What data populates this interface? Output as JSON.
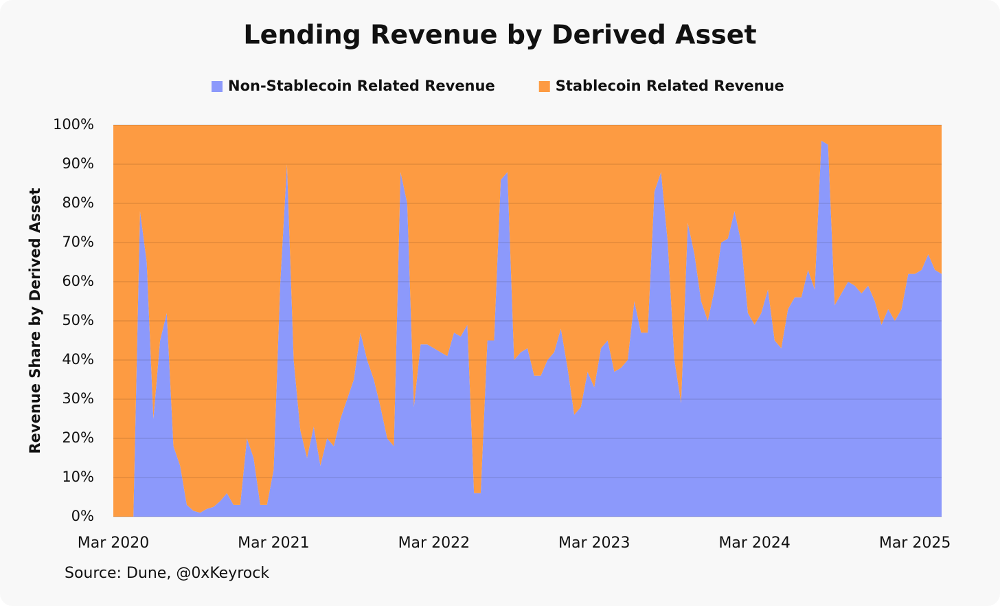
{
  "chart_data": {
    "type": "stacked_area",
    "title": "Lending Revenue by Derived Asset",
    "y_label": "Revenue Share by Derived Asset",
    "source": "Source: Dune, @0xKeyrock",
    "categories": [
      "Mar 2020",
      null,
      null,
      null,
      null,
      null,
      null,
      null,
      null,
      null,
      null,
      null,
      null,
      null,
      null,
      null,
      null,
      null,
      null,
      null,
      null,
      null,
      null,
      null,
      "Mar 2021",
      null,
      null,
      null,
      null,
      null,
      null,
      null,
      null,
      null,
      null,
      null,
      null,
      null,
      null,
      null,
      null,
      null,
      null,
      null,
      null,
      null,
      null,
      null,
      "Mar 2022",
      null,
      null,
      null,
      null,
      null,
      null,
      null,
      null,
      null,
      null,
      null,
      null,
      null,
      null,
      null,
      null,
      null,
      null,
      null,
      null,
      null,
      null,
      null,
      "Mar 2023",
      null,
      null,
      null,
      null,
      null,
      null,
      null,
      null,
      null,
      null,
      null,
      null,
      null,
      null,
      null,
      null,
      null,
      null,
      null,
      null,
      null,
      null,
      null,
      "Mar 2024",
      null,
      null,
      null,
      null,
      null,
      null,
      null,
      null,
      null,
      null,
      null,
      null,
      null,
      null,
      null,
      null,
      null,
      null,
      null,
      null,
      null,
      null,
      null,
      "Mar 2025",
      null,
      null,
      null,
      null
    ],
    "series": [
      {
        "name": "Non-Stablecoin Related Revenue",
        "color": "#8c99fb",
        "values": [
          0,
          0,
          0,
          0,
          78,
          65,
          25,
          45,
          52,
          18,
          13,
          3,
          1.5,
          1,
          2,
          2.5,
          4,
          6,
          3,
          3,
          20,
          15,
          3,
          3,
          12,
          60,
          90,
          40,
          22,
          15,
          23,
          13,
          20,
          18,
          25,
          30,
          35,
          47,
          40,
          35,
          28,
          20,
          18,
          88,
          80,
          28,
          44,
          44,
          43,
          42,
          41,
          47,
          46,
          49,
          6,
          6,
          45,
          45,
          86,
          88,
          40,
          42,
          43,
          36,
          36,
          40,
          42,
          48,
          38,
          26,
          28,
          37,
          33,
          43,
          45,
          37,
          38,
          40,
          55,
          47,
          47,
          83,
          88,
          70,
          40,
          29,
          75,
          67,
          55,
          50,
          58,
          70,
          71,
          78,
          70,
          52,
          49,
          52,
          58,
          45,
          43,
          53,
          56,
          56,
          63,
          58,
          96,
          95,
          54,
          57,
          60,
          59,
          57,
          59,
          55,
          49,
          53,
          50,
          53,
          62,
          62,
          63,
          67,
          63,
          62
        ]
      },
      {
        "name": "Stablecoin Related Revenue",
        "color": "#fd9b42",
        "values": [
          100,
          100,
          100,
          100,
          22,
          35,
          75,
          55,
          48,
          82,
          87,
          97,
          98.5,
          99,
          98,
          97.5,
          96,
          94,
          97,
          97,
          80,
          85,
          97,
          97,
          88,
          40,
          10,
          60,
          78,
          85,
          77,
          87,
          80,
          82,
          75,
          70,
          65,
          53,
          60,
          65,
          72,
          80,
          82,
          12,
          20,
          72,
          56,
          56,
          57,
          58,
          59,
          53,
          54,
          51,
          94,
          94,
          55,
          55,
          14,
          12,
          60,
          58,
          57,
          64,
          64,
          60,
          58,
          52,
          62,
          74,
          72,
          63,
          67,
          57,
          55,
          63,
          62,
          60,
          45,
          53,
          53,
          17,
          12,
          30,
          60,
          71,
          25,
          33,
          45,
          50,
          42,
          30,
          29,
          22,
          30,
          48,
          51,
          48,
          42,
          55,
          57,
          47,
          44,
          44,
          37,
          42,
          4,
          5,
          46,
          43,
          40,
          41,
          43,
          41,
          45,
          51,
          47,
          50,
          47,
          38,
          38,
          37,
          33,
          37,
          38
        ]
      }
    ],
    "ylim": [
      0,
      100
    ],
    "yticks": [
      {
        "value": 0,
        "label": "0%"
      },
      {
        "value": 10,
        "label": "10%"
      },
      {
        "value": 20,
        "label": "20%"
      },
      {
        "value": 30,
        "label": "30%"
      },
      {
        "value": 40,
        "label": "40%"
      },
      {
        "value": 50,
        "label": "50%"
      },
      {
        "value": 60,
        "label": "60%"
      },
      {
        "value": 70,
        "label": "70%"
      },
      {
        "value": 80,
        "label": "80%"
      },
      {
        "value": 90,
        "label": "90%"
      },
      {
        "value": 100,
        "label": "100%"
      }
    ],
    "grid": true
  }
}
